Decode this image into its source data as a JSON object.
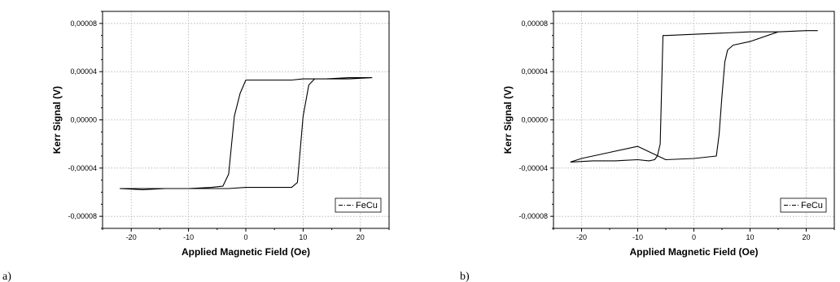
{
  "chart_data": [
    {
      "type": "line",
      "panel_label": "a)",
      "xlabel": "Applied Magnetic Field (Oe)",
      "ylabel": "Kerr Signal (V)",
      "xlim": [
        -25,
        25
      ],
      "ylim": [
        -9e-05,
        9e-05
      ],
      "x_ticks": [
        -20,
        -10,
        0,
        10,
        20
      ],
      "x_tick_labels": [
        "-20",
        "-10",
        "0",
        "10",
        "20"
      ],
      "y_ticks": [
        -8e-05,
        -4e-05,
        0,
        4e-05,
        8e-05
      ],
      "y_tick_labels": [
        "-0,00008",
        "-0,00004",
        "0,00000",
        "0,00004",
        "0,00008"
      ],
      "grid": true,
      "legend_position": "bottom-right",
      "series": [
        {
          "name": "FeCu",
          "x": [
            -22,
            -18,
            -14,
            -10,
            -6,
            -4,
            -3,
            -2,
            -1,
            0,
            2,
            5,
            8,
            10,
            14,
            18,
            22,
            18,
            14,
            12,
            11,
            10,
            9,
            8,
            6,
            3,
            0,
            -3,
            -6,
            -10,
            -14,
            -18,
            -22
          ],
          "y": [
            -5.7e-05,
            -5.8e-05,
            -5.7e-05,
            -5.7e-05,
            -5.6e-05,
            -5.5e-05,
            -4.5e-05,
            3e-06,
            2.2e-05,
            3.3e-05,
            3.3e-05,
            3.3e-05,
            3.3e-05,
            3.4e-05,
            3.4e-05,
            3.5e-05,
            3.5e-05,
            3.4e-05,
            3.4e-05,
            3.4e-05,
            2.9e-05,
            3e-06,
            -5.2e-05,
            -5.6e-05,
            -5.6e-05,
            -5.6e-05,
            -5.6e-05,
            -5.7e-05,
            -5.7e-05,
            -5.7e-05,
            -5.7e-05,
            -5.7e-05,
            -5.7e-05
          ]
        }
      ]
    },
    {
      "type": "line",
      "panel_label": "b)",
      "xlabel": "Applied Magnetic Field (Oe)",
      "ylabel": "Kerr Signal (V)",
      "xlim": [
        -25,
        25
      ],
      "ylim": [
        -9e-05,
        9e-05
      ],
      "x_ticks": [
        -20,
        -10,
        0,
        10,
        20
      ],
      "x_tick_labels": [
        "-20",
        "-10",
        "0",
        "10",
        "20"
      ],
      "y_ticks": [
        -8e-05,
        -4e-05,
        0,
        4e-05,
        8e-05
      ],
      "y_tick_labels": [
        "-0,00008",
        "-0,00004",
        "0,00000",
        "0,00004",
        "0,00008"
      ],
      "grid": true,
      "legend_position": "bottom-right",
      "series": [
        {
          "name": "FeCu",
          "x": [
            -22,
            -18,
            -14,
            -10,
            -8,
            -7,
            -6.5,
            -6,
            -5.5,
            -5,
            0,
            5,
            10,
            15,
            20,
            22,
            20,
            15,
            10,
            7,
            6,
            5.5,
            5,
            4.5,
            4,
            0,
            -5,
            -10,
            -15,
            -20,
            -22
          ],
          "y": [
            -3.5e-05,
            -3.4e-05,
            -3.4e-05,
            -3.3e-05,
            -3.4e-05,
            -3.3e-05,
            -3e-05,
            -2e-05,
            7e-05,
            7e-05,
            7.1e-05,
            7.2e-05,
            7.3e-05,
            7.3e-05,
            7.4e-05,
            7.4e-05,
            7.4e-05,
            7.3e-05,
            6.5e-05,
            6.2e-05,
            5.8e-05,
            4.8e-05,
            2e-05,
            -1.2e-05,
            -3e-05,
            -3.2e-05,
            -3.3e-05,
            -2.2e-05,
            -2.7e-05,
            -3.2e-05,
            -3.5e-05
          ]
        }
      ]
    }
  ]
}
